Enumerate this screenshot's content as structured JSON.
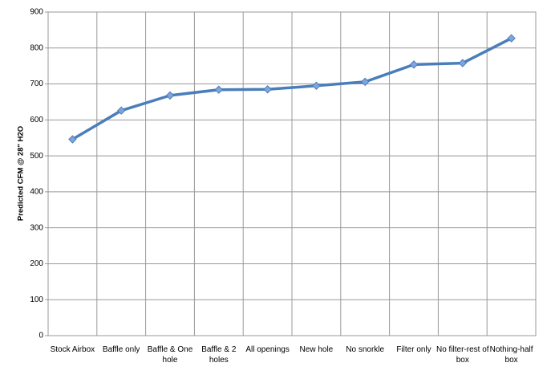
{
  "chart_data": {
    "type": "line",
    "y_label": "Predicted CFM @ 28\" H2O",
    "categories": [
      "Stock Airbox",
      "Baffle only",
      "Baffle & One hole",
      "Baffle & 2 holes",
      "All openings",
      "New hole",
      "No snorkle",
      "Filter only",
      "No filter-rest of box",
      "Nothing-half box"
    ],
    "series": [
      {
        "color": "#4a7ebb",
        "values": [
          546,
          626,
          668,
          684,
          685,
          695,
          706,
          754,
          758,
          827
        ]
      }
    ],
    "ylim": [
      0,
      900
    ],
    "yticks": [
      0,
      100,
      200,
      300,
      400,
      500,
      600,
      700,
      800,
      900
    ],
    "grid": true
  }
}
